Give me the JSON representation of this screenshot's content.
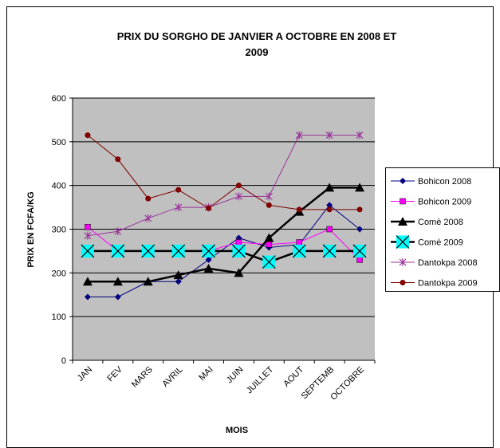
{
  "chart_data": {
    "type": "line",
    "title": "PRIX DU SORGHO DE JANVIER A  OCTOBRE EN 2008 ET 2009",
    "x_label": "MOIS",
    "y_label": "PRIX EN FCFA/KG",
    "categories": [
      "JAN",
      "FEV",
      "MARS",
      "AVRIL",
      "MAI",
      "JUIN",
      "JUILLET",
      "AOUT",
      "SEPTEMB",
      "OCTOBRE"
    ],
    "series": [
      {
        "name": "Bohicon 2008",
        "color": "#000080",
        "marker": "diamond",
        "values": [
          145,
          145,
          180,
          180,
          230,
          280,
          258,
          265,
          355,
          300
        ]
      },
      {
        "name": "Bohicon 2009",
        "color": "#ff00ff",
        "marker": "square",
        "values": [
          305,
          250,
          250,
          250,
          250,
          270,
          265,
          270,
          300,
          230
        ]
      },
      {
        "name": "Comè 2008",
        "color": "#000000",
        "marker": "triangle",
        "values": [
          180,
          180,
          180,
          195,
          210,
          200,
          280,
          340,
          395,
          395
        ]
      },
      {
        "name": "Comè 2009",
        "color": "#000000",
        "marker": "xbox",
        "values": [
          250,
          250,
          250,
          250,
          250,
          250,
          225,
          250,
          250,
          250
        ]
      },
      {
        "name": "Dantokpa 2008",
        "color": "#993399",
        "marker": "star",
        "values": [
          285,
          295,
          325,
          350,
          350,
          375,
          375,
          515,
          515,
          515
        ]
      },
      {
        "name": "Dantokpa 2009",
        "color": "#800000",
        "marker": "circle",
        "values": [
          515,
          460,
          370,
          390,
          348,
          400,
          355,
          345,
          345,
          345
        ]
      }
    ],
    "ylim": [
      0,
      600
    ],
    "yticks": [
      0,
      100,
      200,
      300,
      400,
      500,
      600
    ],
    "grid": true,
    "legend": "right"
  }
}
